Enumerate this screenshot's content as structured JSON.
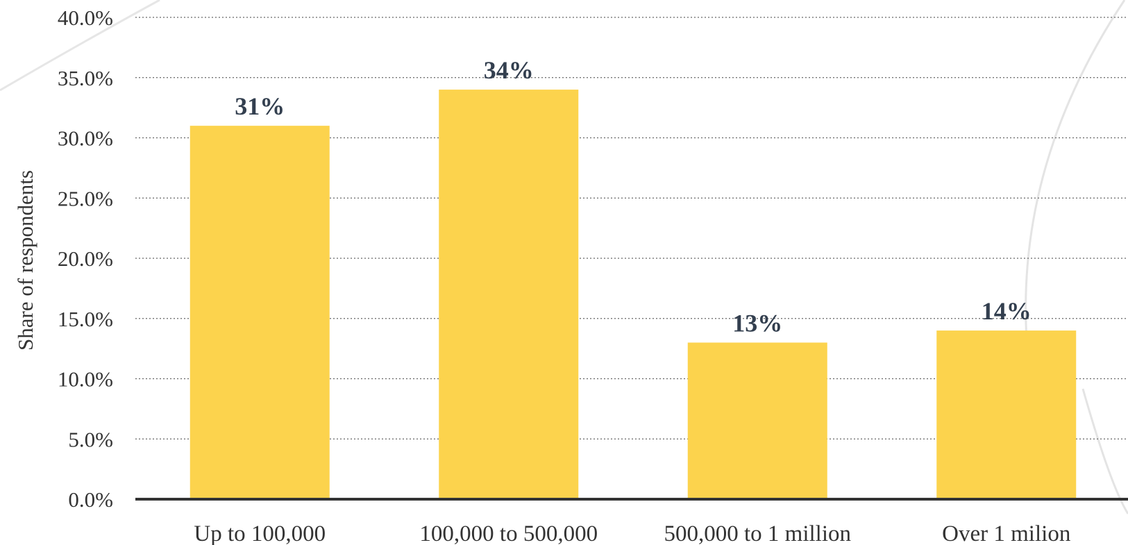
{
  "chart_data": {
    "type": "bar",
    "title": "",
    "xlabel": "",
    "ylabel": "Share of respondents",
    "categories": [
      "Up to 100,000",
      "100,000 to 500,000",
      "500,000 to 1 million",
      "Over 1 milion"
    ],
    "values": [
      31,
      34,
      13,
      14
    ],
    "value_labels": [
      "31%",
      "34%",
      "13%",
      "14%"
    ],
    "ylim": [
      0,
      40
    ],
    "yticks": [
      0,
      5,
      10,
      15,
      20,
      25,
      30,
      35,
      40
    ],
    "ytick_labels": [
      "0.0%",
      "5.0%",
      "10.0%",
      "15.0%",
      "20.0%",
      "25.0%",
      "30.0%",
      "35.0%",
      "40.0%"
    ],
    "grid": true,
    "legend": "none",
    "bar_color": "#fcd34d",
    "label_color": "#333f4f",
    "axis_color": "#333333"
  }
}
